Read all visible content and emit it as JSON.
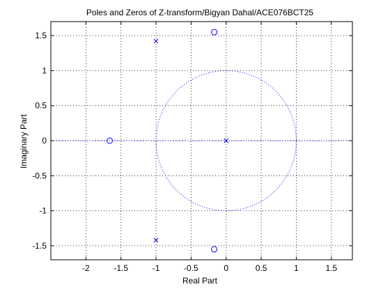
{
  "chart_data": {
    "type": "scatter",
    "title": "Poles and Zeros of Z-transform/Bigyan Dahal/ACE076BCT25",
    "xlabel": "Real Part",
    "ylabel": "Imaginary Part",
    "xlim": [
      -2.5,
      1.8
    ],
    "ylim": [
      -1.7,
      1.7
    ],
    "xticks": [
      -2,
      -1.5,
      -1,
      -0.5,
      0,
      0.5,
      1,
      1.5
    ],
    "yticks": [
      -1.5,
      -1,
      -0.5,
      0,
      0.5,
      1,
      1.5
    ],
    "xtick_labels": [
      "-2",
      "-1.5",
      "-1",
      "-0.5",
      "0",
      "0.5",
      "1",
      "1.5"
    ],
    "ytick_labels": [
      "-1.5",
      "-1",
      "-0.5",
      "0",
      "0.5",
      "1",
      "1.5"
    ],
    "grid": true,
    "unit_circle": true,
    "colors": {
      "markers": "#0000ff",
      "axes": "#000000",
      "grid": "#000000",
      "background": "#ffffff"
    },
    "series": [
      {
        "marker": "o",
        "points": [
          {
            "x": -1.66,
            "y": 0.0
          },
          {
            "x": -0.17,
            "y": 1.55
          },
          {
            "x": -0.17,
            "y": -1.55
          }
        ]
      },
      {
        "marker": "x",
        "points": [
          {
            "x": 0.0,
            "y": 0.0
          },
          {
            "x": -1.0,
            "y": 1.42
          },
          {
            "x": -1.0,
            "y": -1.42
          }
        ]
      }
    ]
  }
}
